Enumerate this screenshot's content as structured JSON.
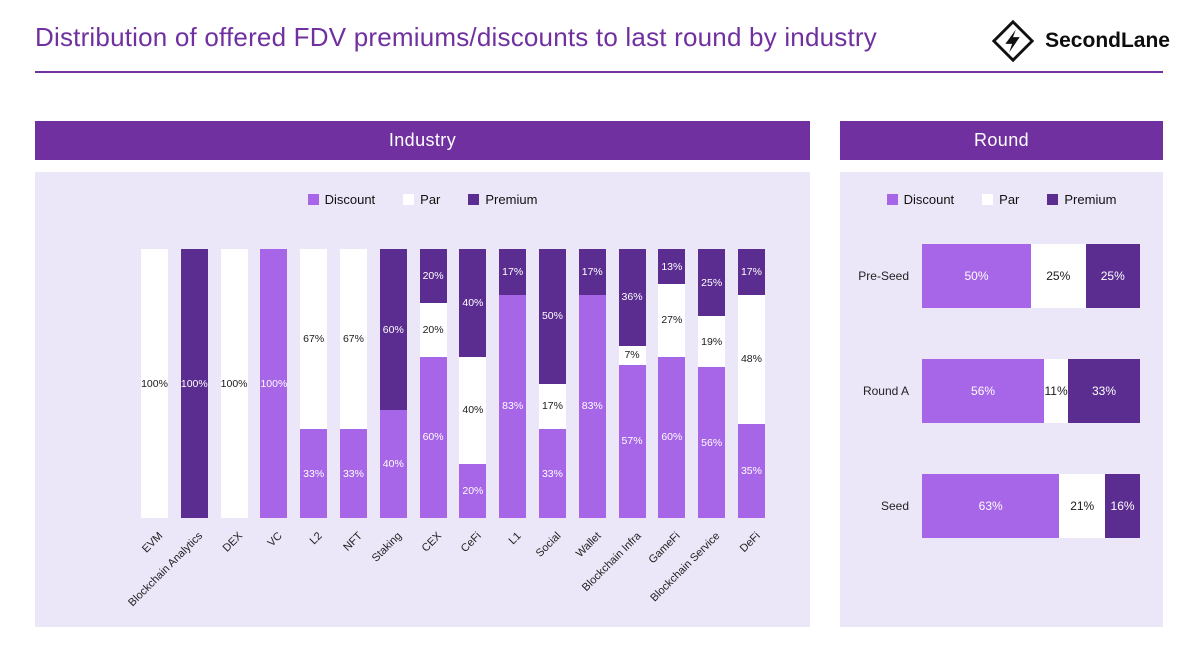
{
  "header": {
    "title": "Distribution of offered FDV premiums/discounts to last round by industry",
    "brand": "SecondLane"
  },
  "legend": {
    "labels": [
      "Discount",
      "Par",
      "Premium"
    ]
  },
  "colors": {
    "title": "#7030A0",
    "header_bg": "#7030A0",
    "panel_bg": "#ECE7F8",
    "discount": "#A765E8",
    "par": "#FFFFFF",
    "premium": "#5B2D90",
    "label_on_fill": "#FFFFFF",
    "label_on_par": "#1A1A1A"
  },
  "chart_data": [
    {
      "type": "bar",
      "title": "Industry",
      "orientation": "vertical",
      "stacked": true,
      "value_format": "percent",
      "ylim": [
        0,
        100
      ],
      "legend_position": "top",
      "categories": [
        "EVM",
        "Blockchain Analytics",
        "DEX",
        "VC",
        "L2",
        "NFT",
        "Staking",
        "CEX",
        "CeFi",
        "L1",
        "Social",
        "Wallet",
        "Blockchain Infra",
        "GameFi",
        "Blockchain Service",
        "DeFi"
      ],
      "series": [
        {
          "name": "Discount",
          "values": [
            0,
            0,
            0,
            100,
            33,
            33,
            40,
            60,
            20,
            83,
            33,
            83,
            57,
            60,
            56,
            35
          ]
        },
        {
          "name": "Par",
          "values": [
            100,
            0,
            100,
            0,
            67,
            67,
            0,
            20,
            40,
            0,
            17,
            0,
            7,
            27,
            19,
            48
          ]
        },
        {
          "name": "Premium",
          "values": [
            0,
            100,
            0,
            0,
            0,
            0,
            60,
            20,
            40,
            17,
            50,
            17,
            36,
            13,
            25,
            17
          ]
        }
      ]
    },
    {
      "type": "bar",
      "title": "Round",
      "orientation": "horizontal",
      "stacked": true,
      "value_format": "percent",
      "xlim": [
        0,
        100
      ],
      "legend_position": "top",
      "categories": [
        "Pre-Seed",
        "Round A",
        "Seed"
      ],
      "series": [
        {
          "name": "Discount",
          "values": [
            50,
            56,
            63
          ]
        },
        {
          "name": "Par",
          "values": [
            25,
            11,
            21
          ]
        },
        {
          "name": "Premium",
          "values": [
            25,
            33,
            16
          ]
        }
      ]
    }
  ]
}
